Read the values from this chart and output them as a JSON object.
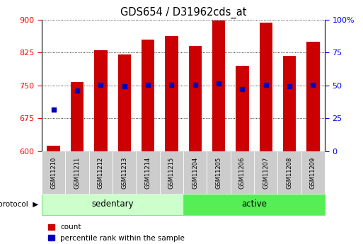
{
  "title": "GDS654 / D31962cds_at",
  "samples": [
    "GSM11210",
    "GSM11211",
    "GSM11212",
    "GSM11213",
    "GSM11214",
    "GSM11215",
    "GSM11204",
    "GSM11205",
    "GSM11206",
    "GSM11207",
    "GSM11208",
    "GSM11209"
  ],
  "bar_heights": [
    612,
    757,
    830,
    820,
    855,
    862,
    840,
    897,
    795,
    893,
    818,
    850
  ],
  "percentile_values": [
    695,
    738,
    752,
    748,
    752,
    752,
    752,
    754,
    742,
    752,
    748,
    752
  ],
  "ymin": 600,
  "ymax": 900,
  "yticks_left": [
    600,
    675,
    750,
    825,
    900
  ],
  "yticks_right_pct": [
    0,
    25,
    50,
    75,
    100
  ],
  "bar_color": "#CC0000",
  "dot_color": "#0000BB",
  "bar_width": 0.55,
  "sedentary_color": "#CCFFCC",
  "active_color": "#55EE55",
  "n_sedentary": 6,
  "title_fontsize": 10.5,
  "tick_fontsize": 8,
  "xtick_fontsize": 6,
  "legend_count": "count",
  "legend_percentile": "percentile rank within the sample",
  "protocol_label": "protocol"
}
